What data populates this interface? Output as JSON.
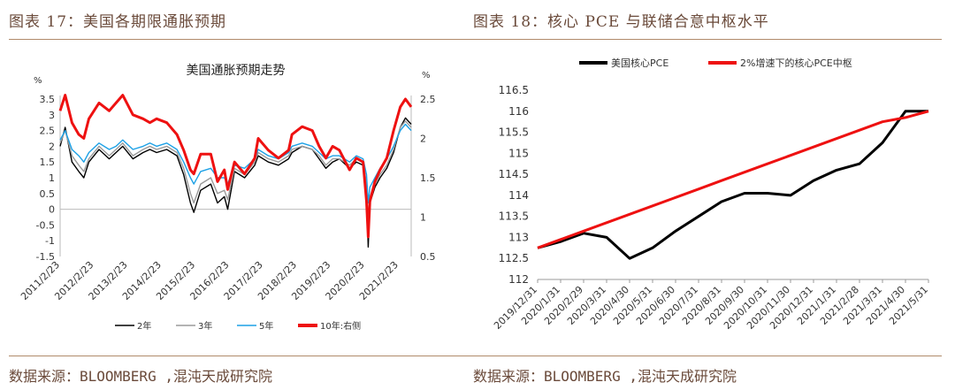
{
  "left": {
    "figure_title": "图表 17：美国各期限通胀预期",
    "source": "数据来源：BLOOMBERG ,混沌天成研究院",
    "chart_data": {
      "type": "line",
      "title": "美国通胀预期走势",
      "y_left_unit": "%",
      "y_right_unit": "%",
      "y_left_ticks": [
        "3.5",
        "3",
        "2.5",
        "2",
        "1.5",
        "1",
        "0.5",
        "0",
        "-0.5",
        "-1",
        "-1.5"
      ],
      "y_left_range": [
        -1.5,
        3.5
      ],
      "y_right_ticks": [
        "2.5",
        "2",
        "1.5",
        "1",
        "0.5"
      ],
      "y_right_range": [
        0.5,
        2.5
      ],
      "x_ticks": [
        "2011/2/23",
        "2012/2/23",
        "2013/2/23",
        "2014/2/23",
        "2015/2/23",
        "2016/2/23",
        "2017/2/23",
        "2018/2/23",
        "2019/2/23",
        "2020/2/23",
        "2021/2/23"
      ],
      "x_range": [
        2011.15,
        2021.52
      ],
      "series": [
        {
          "name": "2年",
          "axis": "left",
          "color": "#000000",
          "x": [
            2011.15,
            2011.3,
            2011.5,
            2011.7,
            2011.85,
            2012.0,
            2012.3,
            2012.6,
            2012.8,
            2013.0,
            2013.3,
            2013.6,
            2013.8,
            2014.0,
            2014.3,
            2014.6,
            2014.8,
            2015.0,
            2015.1,
            2015.3,
            2015.6,
            2015.8,
            2016.0,
            2016.1,
            2016.3,
            2016.6,
            2016.9,
            2017.0,
            2017.3,
            2017.6,
            2017.9,
            2018.0,
            2018.3,
            2018.6,
            2018.8,
            2019.0,
            2019.2,
            2019.4,
            2019.7,
            2019.9,
            2020.1,
            2020.2,
            2020.25,
            2020.3,
            2020.45,
            2020.6,
            2020.8,
            2021.0,
            2021.2,
            2021.35,
            2021.52
          ],
          "y": [
            2.0,
            2.6,
            1.5,
            1.2,
            1.0,
            1.5,
            1.9,
            1.6,
            1.8,
            2.0,
            1.6,
            1.8,
            1.9,
            1.8,
            1.9,
            1.7,
            1.1,
            0.2,
            -0.1,
            0.6,
            0.8,
            0.2,
            0.4,
            0.0,
            1.2,
            1.0,
            1.4,
            1.7,
            1.5,
            1.4,
            1.6,
            1.8,
            2.0,
            1.9,
            1.6,
            1.3,
            1.5,
            1.6,
            1.3,
            1.5,
            1.4,
            0.6,
            -1.2,
            0.2,
            0.7,
            1.0,
            1.3,
            1.8,
            2.6,
            2.9,
            2.7
          ]
        },
        {
          "name": "3年",
          "axis": "left",
          "color": "#9a9a9a",
          "x": [
            2011.15,
            2011.3,
            2011.5,
            2011.7,
            2011.85,
            2012.0,
            2012.3,
            2012.6,
            2012.8,
            2013.0,
            2013.3,
            2013.6,
            2013.8,
            2014.0,
            2014.3,
            2014.6,
            2014.8,
            2015.0,
            2015.1,
            2015.3,
            2015.6,
            2015.8,
            2016.0,
            2016.1,
            2016.3,
            2016.6,
            2016.9,
            2017.0,
            2017.3,
            2017.6,
            2017.9,
            2018.0,
            2018.3,
            2018.6,
            2018.8,
            2019.0,
            2019.2,
            2019.4,
            2019.7,
            2019.9,
            2020.1,
            2020.2,
            2020.25,
            2020.3,
            2020.45,
            2020.6,
            2020.8,
            2021.0,
            2021.2,
            2021.35,
            2021.52
          ],
          "y": [
            2.1,
            2.5,
            1.7,
            1.4,
            1.2,
            1.6,
            2.0,
            1.7,
            1.9,
            2.1,
            1.7,
            1.9,
            2.0,
            1.9,
            2.0,
            1.8,
            1.3,
            0.5,
            0.2,
            0.8,
            1.0,
            0.5,
            0.6,
            0.3,
            1.3,
            1.1,
            1.5,
            1.8,
            1.6,
            1.5,
            1.7,
            1.9,
            2.0,
            1.9,
            1.7,
            1.4,
            1.6,
            1.6,
            1.4,
            1.6,
            1.5,
            0.8,
            -0.5,
            0.4,
            0.8,
            1.1,
            1.4,
            1.9,
            2.6,
            2.8,
            2.6
          ]
        },
        {
          "name": "5年",
          "axis": "left",
          "color": "#1da1e6",
          "x": [
            2011.15,
            2011.3,
            2011.5,
            2011.7,
            2011.85,
            2012.0,
            2012.3,
            2012.6,
            2012.8,
            2013.0,
            2013.3,
            2013.6,
            2013.8,
            2014.0,
            2014.3,
            2014.6,
            2014.8,
            2015.0,
            2015.1,
            2015.3,
            2015.6,
            2015.8,
            2016.0,
            2016.1,
            2016.3,
            2016.6,
            2016.9,
            2017.0,
            2017.3,
            2017.6,
            2017.9,
            2018.0,
            2018.3,
            2018.6,
            2018.8,
            2019.0,
            2019.2,
            2019.4,
            2019.7,
            2019.9,
            2020.1,
            2020.2,
            2020.25,
            2020.3,
            2020.45,
            2020.6,
            2020.8,
            2021.0,
            2021.2,
            2021.35,
            2021.52
          ],
          "y": [
            2.2,
            2.5,
            1.9,
            1.7,
            1.5,
            1.8,
            2.1,
            1.9,
            2.0,
            2.2,
            1.9,
            2.0,
            2.1,
            2.0,
            2.1,
            1.9,
            1.5,
            1.0,
            0.8,
            1.2,
            1.3,
            1.0,
            1.0,
            0.8,
            1.4,
            1.3,
            1.6,
            1.9,
            1.7,
            1.6,
            1.8,
            2.0,
            2.1,
            2.0,
            1.8,
            1.6,
            1.7,
            1.7,
            1.5,
            1.7,
            1.6,
            1.1,
            0.2,
            0.7,
            1.0,
            1.3,
            1.6,
            2.0,
            2.5,
            2.7,
            2.5
          ]
        },
        {
          "name": "10年:右侧",
          "axis": "right",
          "color": "#ee1111",
          "x": [
            2011.15,
            2011.3,
            2011.5,
            2011.7,
            2011.85,
            2012.0,
            2012.3,
            2012.6,
            2012.8,
            2013.0,
            2013.3,
            2013.6,
            2013.8,
            2014.0,
            2014.3,
            2014.6,
            2014.8,
            2015.0,
            2015.1,
            2015.3,
            2015.6,
            2015.8,
            2016.0,
            2016.1,
            2016.3,
            2016.6,
            2016.9,
            2017.0,
            2017.3,
            2017.6,
            2017.9,
            2018.0,
            2018.3,
            2018.6,
            2018.8,
            2019.0,
            2019.2,
            2019.4,
            2019.7,
            2019.9,
            2020.1,
            2020.2,
            2020.25,
            2020.3,
            2020.45,
            2020.6,
            2020.8,
            2021.0,
            2021.2,
            2021.35,
            2021.52
          ],
          "y": [
            2.35,
            2.55,
            2.2,
            2.05,
            2.0,
            2.25,
            2.45,
            2.35,
            2.45,
            2.55,
            2.3,
            2.25,
            2.2,
            2.25,
            2.2,
            2.05,
            1.85,
            1.6,
            1.55,
            1.8,
            1.8,
            1.45,
            1.6,
            1.35,
            1.7,
            1.55,
            1.75,
            2.0,
            1.85,
            1.75,
            1.85,
            2.05,
            2.15,
            2.1,
            1.9,
            1.75,
            1.9,
            1.85,
            1.6,
            1.75,
            1.7,
            1.2,
            0.75,
            1.2,
            1.45,
            1.6,
            1.75,
            2.1,
            2.4,
            2.5,
            2.4
          ]
        }
      ]
    }
  },
  "right": {
    "figure_title": "图表 18：核心 PCE 与联储合意中枢水平",
    "source": "数据来源：BLOOMBERG ,混沌天成研究院",
    "chart_data": {
      "type": "line",
      "y_ticks": [
        "116.5",
        "116",
        "115.5",
        "115",
        "114.5",
        "114",
        "113.5",
        "113",
        "112.5",
        "112"
      ],
      "y_range": [
        112,
        116.5
      ],
      "categories": [
        "2019/12/31",
        "2020/1/31",
        "2020/2/29",
        "2020/3/31",
        "2020/4/30",
        "2020/5/31",
        "2020/6/30",
        "2020/7/31",
        "2020/8/31",
        "2020/9/30",
        "2020/10/31",
        "2020/11/30",
        "2020/12/31",
        "2021/1/31",
        "2021/2/28",
        "2021/3/31",
        "2021/4/30",
        "2021/5/31"
      ],
      "series": [
        {
          "name": "美国核心PCE",
          "color": "#000000",
          "values": [
            112.75,
            112.9,
            113.1,
            113.0,
            112.5,
            112.75,
            113.15,
            113.5,
            113.85,
            114.05,
            114.05,
            114.0,
            114.35,
            114.6,
            114.75,
            115.25,
            116.0,
            116.0
          ]
        },
        {
          "name": "2%增速下的核心PCE中枢",
          "color": "#ee1111",
          "values": [
            112.75,
            112.95,
            113.15,
            113.35,
            113.55,
            113.75,
            113.95,
            114.15,
            114.35,
            114.55,
            114.75,
            114.95,
            115.15,
            115.35,
            115.55,
            115.75,
            115.85,
            116.0
          ]
        }
      ]
    }
  }
}
